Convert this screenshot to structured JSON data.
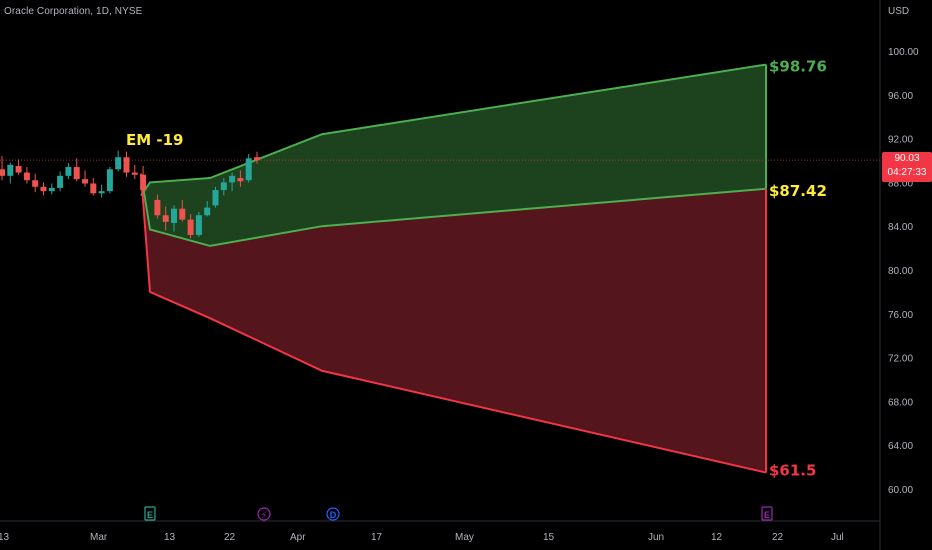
{
  "header": {
    "title": "Oracle Corporation, 1D, NYSE"
  },
  "axis": {
    "currency": "USD"
  },
  "current_price": {
    "value": "90.03",
    "countdown": "04:27:33"
  },
  "colors": {
    "up": "#26a69a",
    "down": "#ef5350",
    "green_line": "#4caf50",
    "green_fill": "#1e4620",
    "red_line": "#f23645",
    "red_fill": "#5a161e",
    "gold": "#ffeb3b",
    "badge": "#f23645"
  },
  "event_markers": [
    {
      "label": "E",
      "date_index": 10,
      "color": "#26a69a",
      "icon": "earnings-icon"
    },
    {
      "label": "⚡",
      "date_index": 19,
      "color": "#9c27b0",
      "icon": "split-icon"
    },
    {
      "label": "D",
      "date_index": 25,
      "color": "#2962ff",
      "icon": "dividend-icon"
    },
    {
      "label": "E",
      "date_index": 58,
      "color": "#9c27b0",
      "icon": "earnings-icon"
    }
  ],
  "chart_data": {
    "type": "candlestick",
    "title": "Oracle Corporation, 1D, NYSE",
    "ylim": [
      58.0,
      103.5
    ],
    "y_ticks": [
      "100.00",
      "96.00",
      "92.00",
      "88.00",
      "84.00",
      "80.00",
      "76.00",
      "72.00",
      "68.00",
      "64.00",
      "60.00"
    ],
    "x_ticks": [
      "13",
      "Mar",
      "13",
      "22",
      "Apr",
      "17",
      "May",
      "15",
      "Jun",
      "12",
      "22",
      "Jul"
    ],
    "candles": [
      {
        "o": 89.2,
        "h": 90.4,
        "l": 88.2,
        "c": 88.6
      },
      {
        "o": 88.6,
        "h": 89.8,
        "l": 87.9,
        "c": 89.6
      },
      {
        "o": 89.5,
        "h": 90.1,
        "l": 88.7,
        "c": 88.9
      },
      {
        "o": 88.9,
        "h": 89.4,
        "l": 87.9,
        "c": 88.2
      },
      {
        "o": 88.2,
        "h": 88.8,
        "l": 87.1,
        "c": 87.6
      },
      {
        "o": 87.6,
        "h": 88.0,
        "l": 86.8,
        "c": 87.2
      },
      {
        "o": 87.2,
        "h": 87.9,
        "l": 86.9,
        "c": 87.5
      },
      {
        "o": 87.5,
        "h": 89.0,
        "l": 87.2,
        "c": 88.6
      },
      {
        "o": 88.6,
        "h": 89.8,
        "l": 88.3,
        "c": 89.4
      },
      {
        "o": 89.4,
        "h": 90.2,
        "l": 88.1,
        "c": 88.3
      },
      {
        "o": 88.3,
        "h": 89.1,
        "l": 87.6,
        "c": 87.9
      },
      {
        "o": 87.9,
        "h": 88.4,
        "l": 86.8,
        "c": 87.0
      },
      {
        "o": 87.0,
        "h": 87.8,
        "l": 86.6,
        "c": 87.2
      },
      {
        "o": 87.2,
        "h": 89.4,
        "l": 87.0,
        "c": 89.2
      },
      {
        "o": 89.2,
        "h": 90.9,
        "l": 89.0,
        "c": 90.3
      },
      {
        "o": 90.3,
        "h": 90.8,
        "l": 88.5,
        "c": 88.9
      },
      {
        "o": 88.9,
        "h": 89.6,
        "l": 88.3,
        "c": 88.7
      },
      {
        "o": 88.7,
        "h": 89.5,
        "l": 86.9,
        "c": 87.3
      },
      {
        "o": 86.4,
        "h": 86.9,
        "l": 84.7,
        "c": 85.0
      },
      {
        "o": 85.0,
        "h": 85.8,
        "l": 83.6,
        "c": 84.4
      },
      {
        "o": 84.3,
        "h": 85.9,
        "l": 83.5,
        "c": 85.6
      },
      {
        "o": 85.6,
        "h": 86.4,
        "l": 84.4,
        "c": 84.6
      },
      {
        "o": 84.6,
        "h": 85.1,
        "l": 82.9,
        "c": 83.2
      },
      {
        "o": 83.2,
        "h": 85.3,
        "l": 83.0,
        "c": 85.0
      },
      {
        "o": 85.0,
        "h": 86.3,
        "l": 84.9,
        "c": 85.7
      },
      {
        "o": 85.9,
        "h": 87.6,
        "l": 85.7,
        "c": 87.3
      },
      {
        "o": 87.3,
        "h": 88.4,
        "l": 86.8,
        "c": 88.0
      },
      {
        "o": 88.0,
        "h": 88.9,
        "l": 87.2,
        "c": 88.6
      },
      {
        "o": 88.4,
        "h": 89.1,
        "l": 87.6,
        "c": 88.1
      },
      {
        "o": 88.2,
        "h": 90.6,
        "l": 88.0,
        "c": 90.2
      },
      {
        "o": 90.3,
        "h": 90.8,
        "l": 89.7,
        "c": 90.03
      }
    ],
    "expected_move": {
      "label": "EM -19",
      "upper": [
        [
          88.0,
          86.8
        ],
        [
          88.1,
          88.0
        ],
        [
          88.2,
          88.4
        ],
        [
          93.1,
          92.4
        ],
        [
          98.1,
          98.76
        ]
      ],
      "middle": [
        [
          88.0,
          88.8
        ],
        [
          88.1,
          83.7
        ],
        [
          88.2,
          82.2
        ],
        [
          93.1,
          84.0
        ],
        [
          98.1,
          87.42
        ]
      ],
      "lower": [
        [
          88.0,
          88.8
        ],
        [
          88.1,
          78.0
        ],
        [
          88.2,
          75.6
        ],
        [
          93.1,
          70.8
        ],
        [
          98.1,
          61.5
        ]
      ],
      "upper_label": "$98.76",
      "middle_label": "$87.42",
      "lower_label": "$61.5"
    }
  }
}
